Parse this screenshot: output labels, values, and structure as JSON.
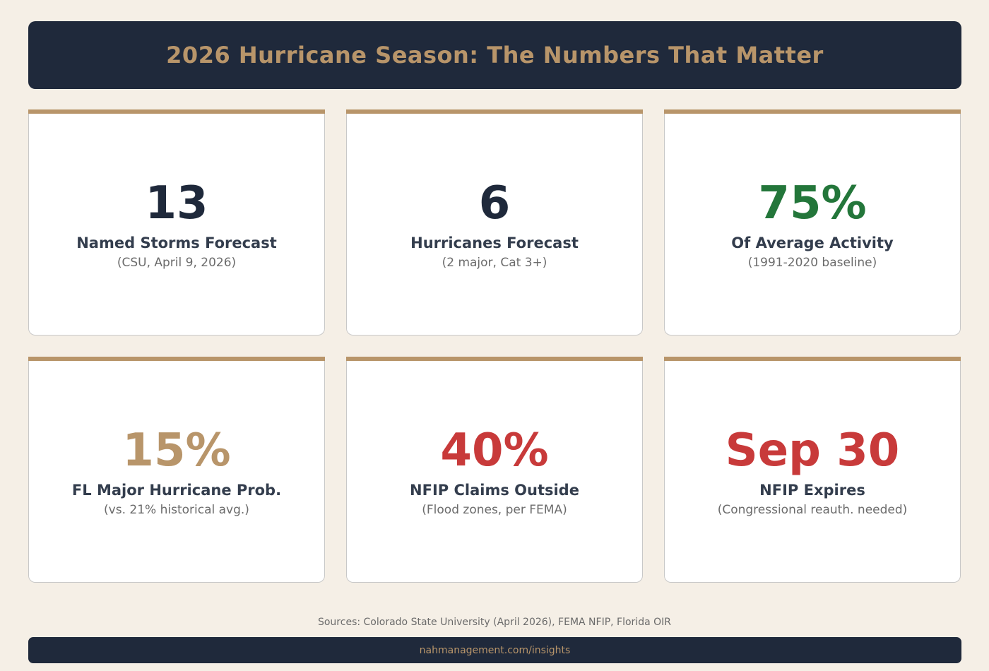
{
  "header": {
    "title": "2026 Hurricane Season: The Numbers That Matter"
  },
  "colors": {
    "navy": "#1f293b",
    "gold": "#b8956a",
    "green": "#23763a",
    "red": "#c83a3a",
    "background": "#f5efe6"
  },
  "cards": [
    {
      "value": "13",
      "label": "Named Storms Forecast",
      "sub": "(CSU, April 9, 2026)",
      "value_color": "#1f293b"
    },
    {
      "value": "6",
      "label": "Hurricanes Forecast",
      "sub": "(2 major, Cat 3+)",
      "value_color": "#1f293b"
    },
    {
      "value": "75%",
      "label": "Of Average Activity",
      "sub": "(1991-2020 baseline)",
      "value_color": "#23763a"
    },
    {
      "value": "15%",
      "label": "FL Major Hurricane Prob.",
      "sub": "(vs. 21% historical avg.)",
      "value_color": "#b8956a"
    },
    {
      "value": "40%",
      "label": "NFIP Claims Outside",
      "sub": "(Flood zones, per FEMA)",
      "value_color": "#c83a3a"
    },
    {
      "value": "Sep 30",
      "label": "NFIP Expires",
      "sub": "(Congressional reauth. needed)",
      "value_color": "#c83a3a"
    }
  ],
  "footer": {
    "sources": "Sources: Colorado State University (April 2026), FEMA NFIP, Florida OIR",
    "link": "nahmanagement.com/insights"
  }
}
